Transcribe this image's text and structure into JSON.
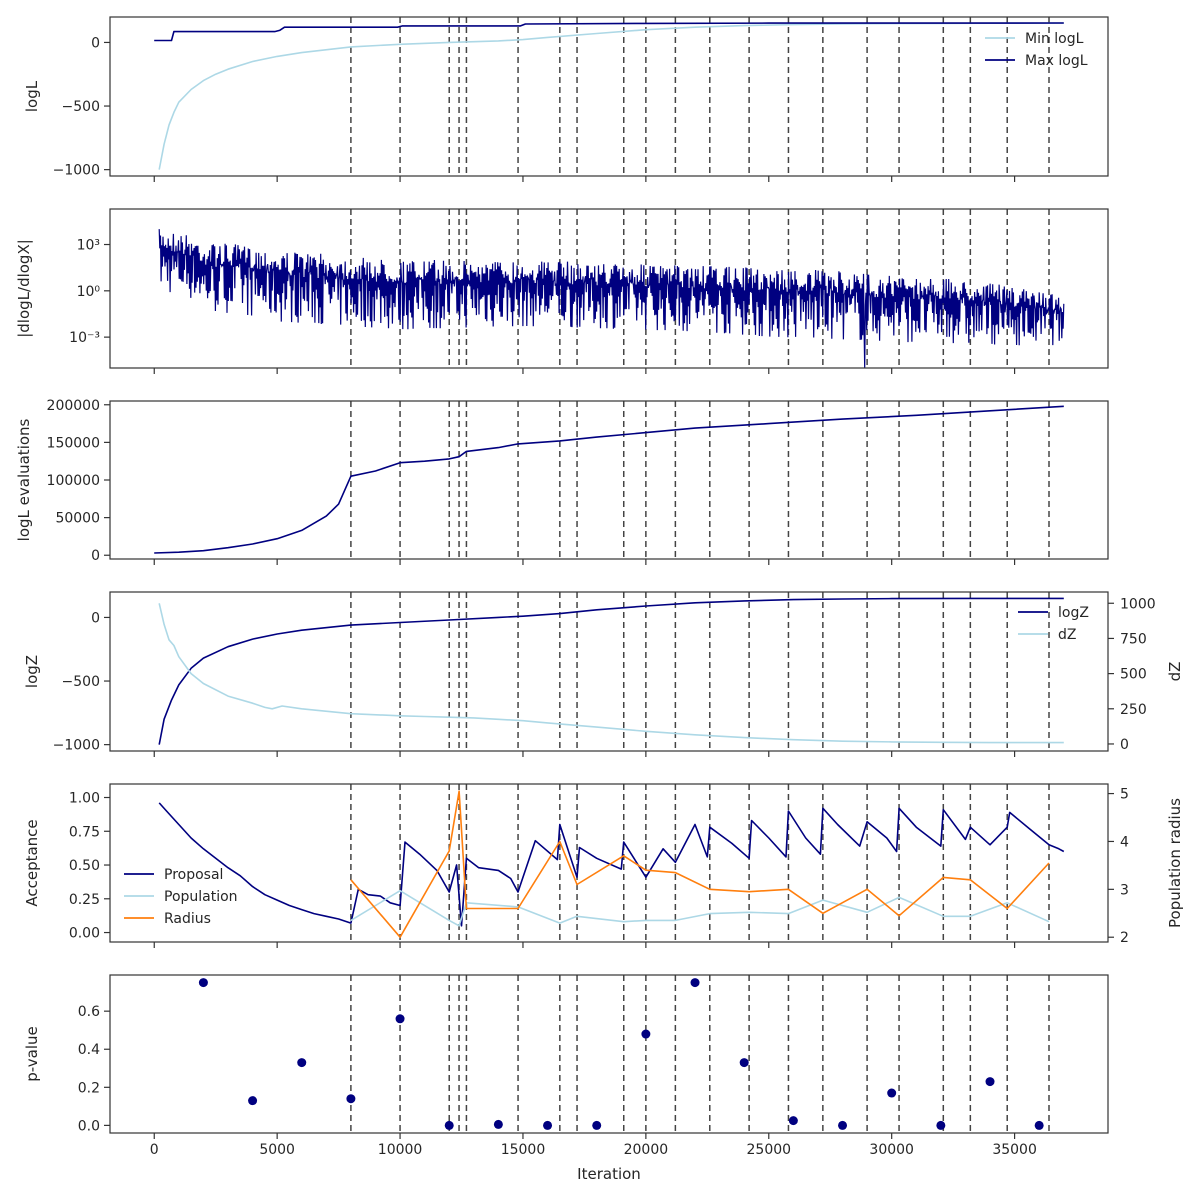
{
  "chart_data": [
    {
      "type": "line",
      "ylabel": "logL",
      "ylim": [
        -1050,
        200
      ],
      "yticks": [
        -1000,
        -500,
        0
      ],
      "ytick_labels": [
        "−1000",
        "−500",
        "0"
      ],
      "legend_position": "top-right",
      "series": [
        {
          "name": "Min logL",
          "color": "#add8e6",
          "x": [
            200,
            400,
            600,
            800,
            1000,
            1500,
            2000,
            2500,
            3000,
            4000,
            5000,
            6000,
            8000,
            10000,
            12000,
            14000,
            15000,
            16000,
            18000,
            20000,
            22000,
            24000,
            26000,
            28000,
            30000,
            32000,
            34000,
            37000
          ],
          "y": [
            -1000,
            -800,
            -650,
            -550,
            -470,
            -370,
            -300,
            -250,
            -210,
            -150,
            -110,
            -80,
            -35,
            -15,
            0,
            12,
            22,
            40,
            70,
            100,
            120,
            132,
            140,
            145,
            148,
            150,
            151,
            152
          ]
        },
        {
          "name": "Max logL",
          "color": "#000080",
          "x": [
            0,
            500,
            700,
            800,
            4900,
            5100,
            5300,
            9900,
            10100,
            14900,
            15100,
            20000,
            25000,
            37000
          ],
          "y": [
            15,
            15,
            15,
            85,
            85,
            95,
            120,
            120,
            130,
            130,
            145,
            150,
            152,
            153
          ]
        }
      ],
      "vlines": [
        8000,
        10000,
        12000,
        12400,
        12700,
        14800,
        16500,
        17200,
        19100,
        20000,
        21200,
        22600,
        24200,
        25800,
        27200,
        29000,
        30300,
        32100,
        33200,
        34700,
        36400
      ]
    },
    {
      "type": "line",
      "ylabel": "|dlogL/dlogX|",
      "yscale": "log",
      "ylim": [
        1e-05,
        200000
      ],
      "yticks": [
        0.001,
        1,
        1000
      ],
      "ytick_labels": [
        "10⁻³",
        "10⁰",
        "10³"
      ],
      "series": [
        {
          "name": "",
          "color": "#000080",
          "x": [
            200,
            2000,
            5000,
            8000,
            10000,
            15000,
            20000,
            25000,
            30000,
            35000,
            37000
          ],
          "y_upper": [
            10000,
            1500,
            400,
            150,
            100,
            100,
            50,
            30,
            10,
            1.5,
            0.5
          ],
          "y_lower": [
            1,
            0.05,
            0.01,
            0.005,
            0.003,
            0.005,
            0.003,
            0.001,
            0.0005,
            0.0003,
            0.0003
          ],
          "y_min_spike": [
            1e-05
          ]
        }
      ],
      "vlines": [
        8000,
        10000,
        12000,
        12400,
        12700,
        14800,
        16500,
        17200,
        19100,
        20000,
        21200,
        22600,
        24200,
        25800,
        27200,
        29000,
        30300,
        32100,
        33200,
        34700,
        36400
      ]
    },
    {
      "type": "line",
      "ylabel": "logL evaluations",
      "ylim": [
        -5000,
        205000
      ],
      "yticks": [
        0,
        50000,
        100000,
        150000,
        200000
      ],
      "ytick_labels": [
        "0",
        "50000",
        "100000",
        "150000",
        "200000"
      ],
      "series": [
        {
          "name": "",
          "color": "#000080",
          "x": [
            0,
            1000,
            2000,
            3000,
            4000,
            5000,
            6000,
            7000,
            7500,
            8000,
            9000,
            10000,
            11000,
            12000,
            12400,
            12700,
            14000,
            14800,
            16500,
            18000,
            20000,
            22000,
            25000,
            28000,
            31000,
            34000,
            37000
          ],
          "y": [
            3000,
            4000,
            6000,
            10000,
            15000,
            22000,
            33000,
            52000,
            68000,
            105000,
            112000,
            123000,
            125000,
            128000,
            131000,
            138000,
            143000,
            148000,
            152000,
            157000,
            163000,
            169000,
            175000,
            181000,
            186000,
            192000,
            198000
          ]
        }
      ],
      "vlines": [
        8000,
        10000,
        12000,
        12400,
        12700,
        14800,
        16500,
        17200,
        19100,
        20000,
        21200,
        22600,
        24200,
        25800,
        27200,
        29000,
        30300,
        32100,
        33200,
        34700,
        36400
      ]
    },
    {
      "type": "line",
      "ylabel": "logZ",
      "ylabel_right": "dZ",
      "ylim": [
        -1050,
        200
      ],
      "yticks": [
        -1000,
        -500,
        0
      ],
      "ytick_labels": [
        "−1000",
        "−500",
        "0"
      ],
      "ylim_right": [
        -50,
        1080
      ],
      "yticks_right": [
        0,
        250,
        500,
        750,
        1000
      ],
      "ytick_labels_right": [
        "0",
        "250",
        "500",
        "750",
        "1000"
      ],
      "legend_position": "top-right",
      "series": [
        {
          "name": "logZ",
          "color": "#000080",
          "axis": "left",
          "x": [
            200,
            400,
            700,
            1000,
            1500,
            2000,
            3000,
            4000,
            5000,
            6000,
            8000,
            10000,
            12000,
            14000,
            15000,
            16500,
            18000,
            20000,
            22000,
            24000,
            26000,
            28000,
            30000,
            33000,
            37000
          ],
          "y": [
            -1000,
            -800,
            -650,
            -530,
            -400,
            -320,
            -230,
            -170,
            -130,
            -100,
            -60,
            -40,
            -20,
            0,
            10,
            30,
            60,
            90,
            115,
            130,
            140,
            145,
            148,
            150,
            150
          ]
        },
        {
          "name": "dZ",
          "color": "#add8e6",
          "axis": "right",
          "x": [
            200,
            400,
            600,
            800,
            1000,
            1500,
            2000,
            3000,
            4000,
            4500,
            4800,
            5200,
            6000,
            8000,
            10000,
            11000,
            12000,
            13000,
            14000,
            15000,
            16000,
            18000,
            20000,
            22000,
            24000,
            26000,
            28000,
            30000,
            32000,
            34000,
            37000
          ],
          "y": [
            1000,
            850,
            740,
            700,
            620,
            500,
            430,
            340,
            290,
            260,
            250,
            270,
            250,
            215,
            200,
            195,
            190,
            185,
            175,
            165,
            150,
            120,
            90,
            65,
            45,
            30,
            20,
            15,
            12,
            10,
            10
          ]
        }
      ],
      "vlines": [
        8000,
        10000,
        12000,
        12400,
        12700,
        14800,
        16500,
        17200,
        19100,
        20000,
        21200,
        22600,
        24200,
        25800,
        27200,
        29000,
        30300,
        32100,
        33200,
        34700,
        36400
      ]
    },
    {
      "type": "line",
      "ylabel": "Acceptance",
      "ylabel_right": "Population radius",
      "ylim": [
        -0.07,
        1.1
      ],
      "yticks": [
        0,
        0.25,
        0.5,
        0.75,
        1
      ],
      "ytick_labels": [
        "0.00",
        "0.25",
        "0.50",
        "0.75",
        "1.00"
      ],
      "ylim_right": [
        1.9,
        5.2
      ],
      "yticks_right": [
        2,
        3,
        4,
        5
      ],
      "ytick_labels_right": [
        "2",
        "3",
        "4",
        "5"
      ],
      "legend_position": "lower-left",
      "series": [
        {
          "name": "Proposal",
          "color": "#000080",
          "axis": "left",
          "x": [
            200,
            500,
            1000,
            1500,
            2000,
            2500,
            3000,
            3500,
            4000,
            4500,
            5000,
            5500,
            6000,
            6500,
            7000,
            7500,
            8000,
            8300,
            8700,
            9200,
            9600,
            10000,
            10200,
            10800,
            11500,
            12000,
            12300,
            12500,
            12700,
            13200,
            14000,
            14500,
            14800,
            15500,
            16400,
            16500,
            17200,
            17300,
            18000,
            19000,
            19100,
            20000,
            20700,
            21200,
            22000,
            22500,
            22600,
            23500,
            24200,
            24300,
            25000,
            25700,
            25800,
            26500,
            27100,
            27200,
            27800,
            28700,
            29000,
            29800,
            30200,
            30300,
            31000,
            32000,
            32100,
            33000,
            33200,
            34000,
            34700,
            34800,
            35600,
            36400,
            36800,
            37000
          ],
          "y": [
            0.96,
            0.9,
            0.8,
            0.7,
            0.62,
            0.55,
            0.48,
            0.42,
            0.34,
            0.28,
            0.24,
            0.2,
            0.17,
            0.14,
            0.12,
            0.1,
            0.07,
            0.32,
            0.28,
            0.27,
            0.22,
            0.2,
            0.67,
            0.58,
            0.46,
            0.3,
            0.5,
            0.05,
            0.55,
            0.48,
            0.46,
            0.4,
            0.3,
            0.68,
            0.54,
            0.8,
            0.41,
            0.63,
            0.55,
            0.47,
            0.67,
            0.41,
            0.62,
            0.52,
            0.8,
            0.56,
            0.78,
            0.66,
            0.55,
            0.83,
            0.7,
            0.56,
            0.9,
            0.7,
            0.58,
            0.92,
            0.8,
            0.64,
            0.82,
            0.7,
            0.6,
            0.92,
            0.78,
            0.64,
            0.91,
            0.69,
            0.78,
            0.65,
            0.78,
            0.89,
            0.77,
            0.65,
            0.62,
            0.6
          ]
        },
        {
          "name": "Population",
          "color": "#add8e6",
          "axis": "left",
          "x": [
            8000,
            10000,
            12000,
            12400,
            12700,
            14800,
            16500,
            17200,
            19100,
            20000,
            21200,
            22600,
            24200,
            25800,
            27200,
            29000,
            30300,
            32100,
            33200,
            34700,
            36400
          ],
          "y": [
            0.09,
            0.31,
            0.09,
            0.05,
            0.22,
            0.19,
            0.07,
            0.12,
            0.08,
            0.09,
            0.09,
            0.14,
            0.15,
            0.14,
            0.24,
            0.15,
            0.26,
            0.12,
            0.12,
            0.22,
            0.08
          ]
        },
        {
          "name": "Radius",
          "color": "#ff7f0e",
          "axis": "right",
          "x": [
            8000,
            10000,
            12000,
            12400,
            12700,
            14800,
            16500,
            17200,
            19100,
            20000,
            21200,
            22600,
            24200,
            25800,
            27200,
            29000,
            30300,
            32100,
            33200,
            34700,
            36400
          ],
          "y": [
            3.2,
            2.0,
            3.8,
            5.05,
            2.6,
            2.6,
            4.0,
            3.1,
            3.7,
            3.4,
            3.35,
            3.0,
            2.95,
            3.0,
            2.5,
            3.0,
            2.45,
            3.25,
            3.2,
            2.6,
            3.55
          ]
        }
      ],
      "vlines": [
        8000,
        10000,
        12000,
        12400,
        12700,
        14800,
        16500,
        17200,
        19100,
        20000,
        21200,
        22600,
        24200,
        25800,
        27200,
        29000,
        30300,
        32100,
        33200,
        34700,
        36400
      ]
    },
    {
      "type": "scatter",
      "ylabel": "p-value",
      "xlabel": "Iteration",
      "xlim": [
        -1800,
        38800
      ],
      "xticks": [
        0,
        5000,
        10000,
        15000,
        20000,
        25000,
        30000,
        35000
      ],
      "xtick_labels": [
        "0",
        "5000",
        "10000",
        "15000",
        "20000",
        "25000",
        "30000",
        "35000"
      ],
      "ylim": [
        -0.04,
        0.79
      ],
      "yticks": [
        0,
        0.2,
        0.4,
        0.6
      ],
      "ytick_labels": [
        "0.0",
        "0.2",
        "0.4",
        "0.6"
      ],
      "series": [
        {
          "name": "",
          "color": "#000080",
          "x": [
            2000,
            4000,
            6000,
            8000,
            10000,
            12000,
            14000,
            16000,
            18000,
            20000,
            22000,
            24000,
            26000,
            28000,
            30000,
            32000,
            34000,
            36000
          ],
          "y": [
            0.75,
            0.13,
            0.33,
            0.14,
            0.56,
            0.0,
            0.005,
            0.0,
            0.0,
            0.48,
            0.75,
            0.33,
            0.025,
            0.0,
            0.17,
            0.0,
            0.23,
            0.0
          ]
        }
      ],
      "vlines": [
        8000,
        10000,
        12000,
        12400,
        12700,
        14800,
        16500,
        17200,
        19100,
        20000,
        21200,
        22600,
        24200,
        25800,
        27200,
        29000,
        30300,
        32100,
        33200,
        34700,
        36400
      ]
    }
  ]
}
